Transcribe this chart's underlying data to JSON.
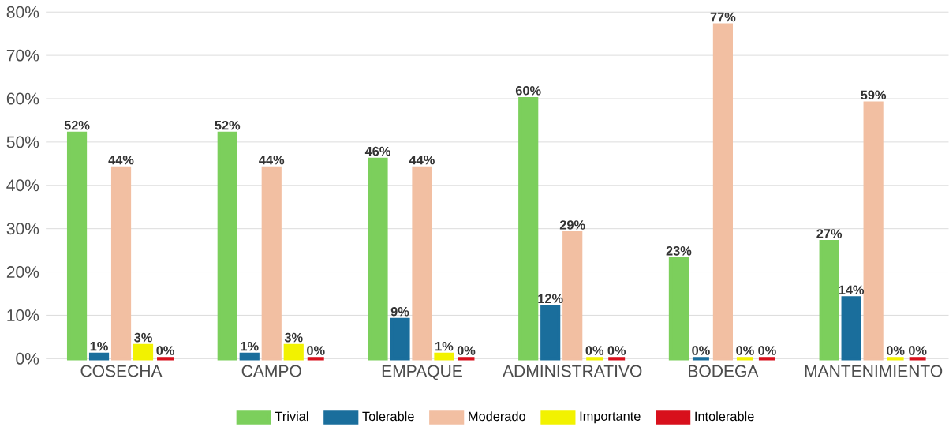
{
  "chart_data": {
    "type": "bar",
    "categories": [
      "COSECHA",
      "CAMPO",
      "EMPAQUE",
      "ADMINISTRATIVO",
      "BODEGA",
      "MANTENIMIENTO"
    ],
    "ylim": [
      0,
      80
    ],
    "yticks": [
      {
        "value": 0,
        "label": "0%"
      },
      {
        "value": 10,
        "label": "10%"
      },
      {
        "value": 20,
        "label": "20%"
      },
      {
        "value": 30,
        "label": "30%"
      },
      {
        "value": 40,
        "label": "40%"
      },
      {
        "value": 50,
        "label": "50%"
      },
      {
        "value": 60,
        "label": "60%"
      },
      {
        "value": 70,
        "label": "70%"
      },
      {
        "value": 80,
        "label": "80%"
      }
    ],
    "grid": "y",
    "legend": "bottom",
    "series": [
      {
        "name": "Trivial",
        "color": "#7ccf5c",
        "values": [
          52,
          52,
          46,
          60,
          23,
          27
        ],
        "value_labels": [
          "52%",
          "52%",
          "46%",
          "60%",
          "23%",
          "27%"
        ]
      },
      {
        "name": "Tolerable",
        "color": "#1a6e9c",
        "values": [
          1,
          1,
          9,
          12,
          0,
          14
        ],
        "value_labels": [
          "1%",
          "1%",
          "9%",
          "12%",
          "0%",
          "14%"
        ]
      },
      {
        "name": "Moderado",
        "color": "#f2bfa2",
        "values": [
          44,
          44,
          44,
          29,
          77,
          59
        ],
        "value_labels": [
          "44%",
          "44%",
          "44%",
          "29%",
          "77%",
          "59%"
        ]
      },
      {
        "name": "Importante",
        "color": "#f2f200",
        "values": [
          3,
          3,
          1,
          0,
          0,
          0
        ],
        "value_labels": [
          "3%",
          "3%",
          "1%",
          "0%",
          "0%",
          "0%"
        ]
      },
      {
        "name": "Intolerable",
        "color": "#d8101c",
        "values": [
          0,
          0,
          0,
          0,
          0,
          0
        ],
        "value_labels": [
          "0%",
          "0%",
          "0%",
          "0%",
          "0%",
          "0%"
        ]
      }
    ]
  }
}
